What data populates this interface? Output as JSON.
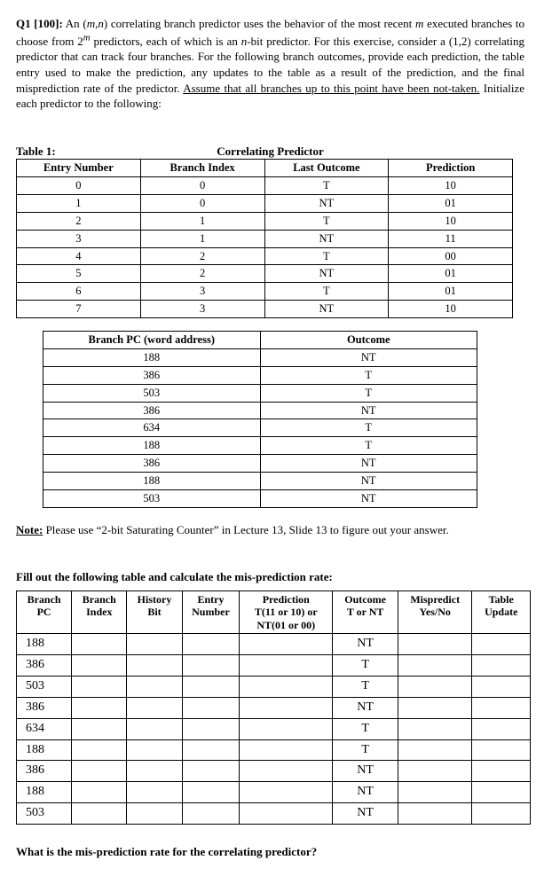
{
  "problem": {
    "label": "Q1 [100]:",
    "body_html": "An (<i>m,n</i>) correlating branch predictor uses the behavior of the most recent <i>m</i> executed branches to choose from 2<sup><i>m</i></sup> predictors, each of which is an <i>n</i>-bit predictor. For this exercise, consider a (1,2) correlating predictor that can track four branches. For the following branch outcomes, provide each prediction, the table entry used to make the prediction, any updates to the table as a result of the prediction, and the final misprediction rate of the predictor. <u>Assume that all branches up to this point have been not-taken.</u> Initialize each predictor to the following:"
  },
  "table1": {
    "caption_left": "Table 1:",
    "caption_center": "Correlating Predictor",
    "headers": [
      "Entry Number",
      "Branch Index",
      "Last Outcome",
      "Prediction"
    ],
    "rows": [
      [
        "0",
        "0",
        "T",
        "10"
      ],
      [
        "1",
        "0",
        "NT",
        "01"
      ],
      [
        "2",
        "1",
        "T",
        "10"
      ],
      [
        "3",
        "1",
        "NT",
        "11"
      ],
      [
        "4",
        "2",
        "T",
        "00"
      ],
      [
        "5",
        "2",
        "NT",
        "01"
      ],
      [
        "6",
        "3",
        "T",
        "01"
      ],
      [
        "7",
        "3",
        "NT",
        "10"
      ]
    ]
  },
  "table2": {
    "headers": [
      "Branch PC (word address)",
      "Outcome"
    ],
    "rows": [
      [
        "188",
        "NT"
      ],
      [
        "386",
        "T"
      ],
      [
        "503",
        "T"
      ],
      [
        "386",
        "NT"
      ],
      [
        "634",
        "T"
      ],
      [
        "188",
        "T"
      ],
      [
        "386",
        "NT"
      ],
      [
        "188",
        "NT"
      ],
      [
        "503",
        "NT"
      ]
    ]
  },
  "note": {
    "prefix": "Note:",
    "text": " Please use “2-bit Saturating Counter” in Lecture 13, Slide 13 to figure out your answer."
  },
  "fill_heading": "Fill out the following table and calculate the mis-prediction rate:",
  "table3": {
    "headers": {
      "pc": "Branch\nPC",
      "bi": "Branch\nIndex",
      "hb": "History\nBit",
      "en": "Entry\nNumber",
      "pred": "Prediction\nT(11 or 10) or\nNT(01 or 00)",
      "out": "Outcome\nT or NT",
      "mis": "Mispredict\nYes/No",
      "upd": "Table\nUpdate"
    },
    "rows": [
      {
        "pc": "188",
        "out": "NT"
      },
      {
        "pc": "386",
        "out": "T"
      },
      {
        "pc": "503",
        "out": "T"
      },
      {
        "pc": "386",
        "out": "NT"
      },
      {
        "pc": "634",
        "out": "T"
      },
      {
        "pc": "188",
        "out": "T"
      },
      {
        "pc": "386",
        "out": "NT"
      },
      {
        "pc": "188",
        "out": "NT"
      },
      {
        "pc": "503",
        "out": "NT"
      }
    ]
  },
  "final_question": "What is the mis-prediction rate for the correlating predictor?"
}
